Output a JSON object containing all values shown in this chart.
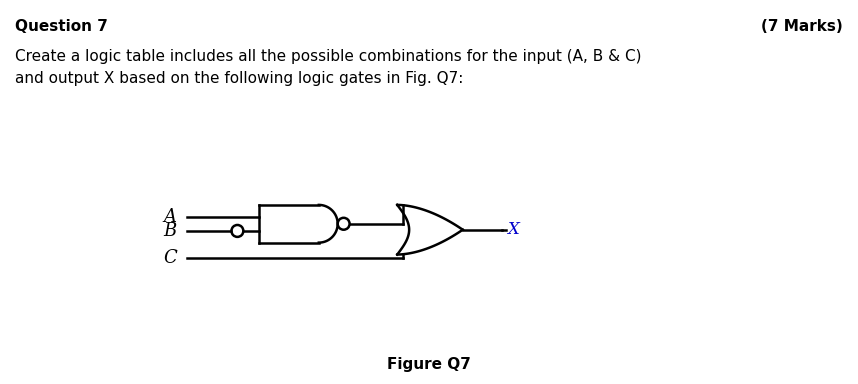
{
  "title_left": "Question 7",
  "title_right": "(7 Marks)",
  "body_text": "Create a logic table includes all the possible combinations for the input (A, B & C)\nand output X based on the following logic gates in Fig. Q7:",
  "figure_label": "Figure Q7",
  "bg_color": "#ffffff",
  "line_color": "#000000",
  "title_fontsize": 11,
  "body_fontsize": 11,
  "figure_label_fontsize": 11,
  "x_label_color": "#0000cc"
}
